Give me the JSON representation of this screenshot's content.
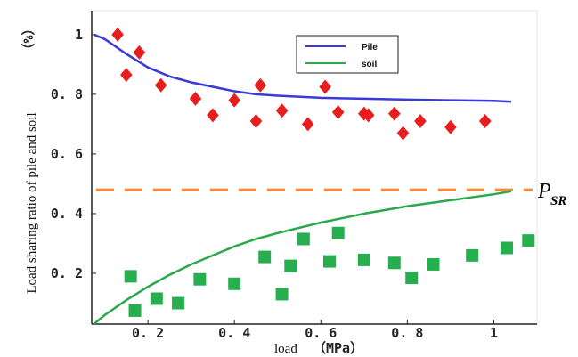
{
  "chart_data": {
    "type": "scatter",
    "xlabel": "load",
    "xunit": "（MPa）",
    "ylabel": "Load sharing ratio of pile and soil",
    "yunit": "（%）",
    "x_ticks": [
      0.2,
      0.4,
      0.6,
      0.8,
      1
    ],
    "x_tick_labels": [
      "0. 2",
      "0. 4",
      "0. 6",
      "0. 8",
      "1"
    ],
    "y_ticks": [
      0.2,
      0.4,
      0.6,
      0.8,
      1
    ],
    "y_tick_labels": [
      "0. 2",
      "0. 4",
      "0. 6",
      "0. 8",
      "1"
    ],
    "xlim": [
      0.07,
      1.1
    ],
    "ylim": [
      0.03,
      1.08
    ],
    "threshold": {
      "label": "P",
      "label_sub": "SR",
      "y": 0.48,
      "color": "#f58a3b"
    },
    "legend": {
      "position": "top-center",
      "entries": [
        {
          "label": "Pile",
          "color": "#3a3ad8"
        },
        {
          "label": "soil",
          "color": "#2aa84a"
        }
      ]
    },
    "fit_curves": [
      {
        "label": "Pile",
        "color": "#3a3ad8",
        "x": [
          0.075,
          0.1,
          0.15,
          0.2,
          0.25,
          0.3,
          0.35,
          0.4,
          0.45,
          0.5,
          0.6,
          0.7,
          0.8,
          0.9,
          1.0,
          1.04
        ],
        "y": [
          1.0,
          0.985,
          0.935,
          0.89,
          0.86,
          0.84,
          0.825,
          0.81,
          0.8,
          0.795,
          0.788,
          0.785,
          0.782,
          0.78,
          0.778,
          0.775
        ]
      },
      {
        "label": "soil",
        "color": "#2aa84a",
        "x": [
          0.075,
          0.1,
          0.15,
          0.2,
          0.25,
          0.3,
          0.35,
          0.4,
          0.45,
          0.5,
          0.6,
          0.7,
          0.8,
          0.9,
          1.0,
          1.04
        ],
        "y": [
          0.03,
          0.06,
          0.11,
          0.155,
          0.195,
          0.23,
          0.26,
          0.29,
          0.315,
          0.335,
          0.37,
          0.4,
          0.425,
          0.445,
          0.465,
          0.475
        ]
      }
    ],
    "series": [
      {
        "label": "Pile",
        "marker": "diamond",
        "color": "#e61e1e",
        "x": [
          0.13,
          0.15,
          0.18,
          0.23,
          0.31,
          0.35,
          0.4,
          0.45,
          0.46,
          0.51,
          0.57,
          0.61,
          0.64,
          0.7,
          0.71,
          0.77,
          0.79,
          0.83,
          0.9,
          0.98
        ],
        "y": [
          1.0,
          0.865,
          0.94,
          0.83,
          0.785,
          0.73,
          0.78,
          0.71,
          0.83,
          0.745,
          0.7,
          0.825,
          0.74,
          0.735,
          0.73,
          0.735,
          0.67,
          0.71,
          0.69,
          0.71
        ]
      },
      {
        "label": "soil",
        "marker": "square",
        "color": "#27ae4f",
        "x": [
          0.16,
          0.17,
          0.22,
          0.27,
          0.32,
          0.4,
          0.47,
          0.51,
          0.53,
          0.56,
          0.62,
          0.64,
          0.7,
          0.77,
          0.81,
          0.86,
          0.95,
          1.03,
          1.08
        ],
        "y": [
          0.19,
          0.075,
          0.115,
          0.1,
          0.18,
          0.165,
          0.255,
          0.13,
          0.225,
          0.315,
          0.24,
          0.335,
          0.245,
          0.235,
          0.185,
          0.23,
          0.26,
          0.285,
          0.31
        ]
      }
    ]
  }
}
